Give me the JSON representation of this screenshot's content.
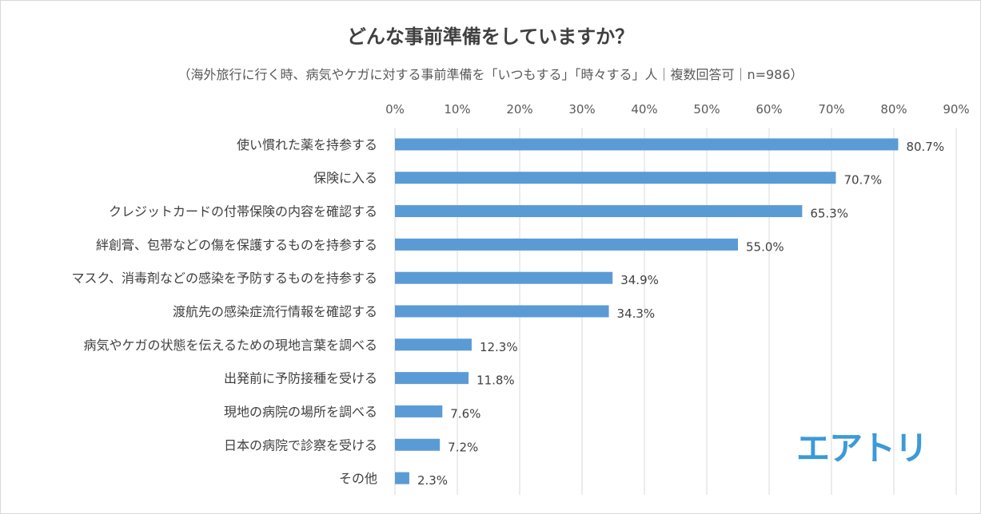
{
  "chart_data": {
    "type": "bar",
    "orientation": "horizontal",
    "title": "どんな事前準備をしていますか？",
    "subtitle": "（海外旅行に行く時、病気やケガに対する事前準備を「いつもする」「時々する」人｜複数回答可｜n=986）",
    "categories": [
      "使い慣れた薬を持参する",
      "保険に入る",
      "クレジットカードの付帯保険の内容を確認する",
      "絆創膏、包帯などの傷を保護するものを持参する",
      "マスク、消毒剤などの感染を予防するものを持参する",
      "渡航先の感染症流行情報を確認する",
      "病気やケガの状態を伝えるための現地言葉を調べる",
      "出発前に予防接種を受ける",
      "現地の病院の場所を調べる",
      "日本の病院で診察を受ける",
      "その他"
    ],
    "values": [
      80.7,
      70.7,
      65.3,
      55.0,
      34.9,
      34.3,
      12.3,
      11.8,
      7.6,
      7.2,
      2.3
    ],
    "value_labels": [
      "80.7%",
      "70.7%",
      "65.3%",
      "55.0%",
      "34.9%",
      "34.3%",
      "12.3%",
      "11.8%",
      "7.6%",
      "7.2%",
      "2.3%"
    ],
    "xlim": [
      0,
      90
    ],
    "x_ticks": [
      0,
      10,
      20,
      30,
      40,
      50,
      60,
      70,
      80,
      90
    ],
    "x_tick_labels": [
      "0%",
      "10%",
      "20%",
      "30%",
      "40%",
      "50%",
      "60%",
      "70%",
      "80%",
      "90%"
    ],
    "axis_position": "top",
    "grid": true,
    "bar_color": "#5b9bd5",
    "grid_color": "#d9d9d9"
  },
  "logo_text": "エアトリ",
  "logo_color": "#3b9ad9"
}
